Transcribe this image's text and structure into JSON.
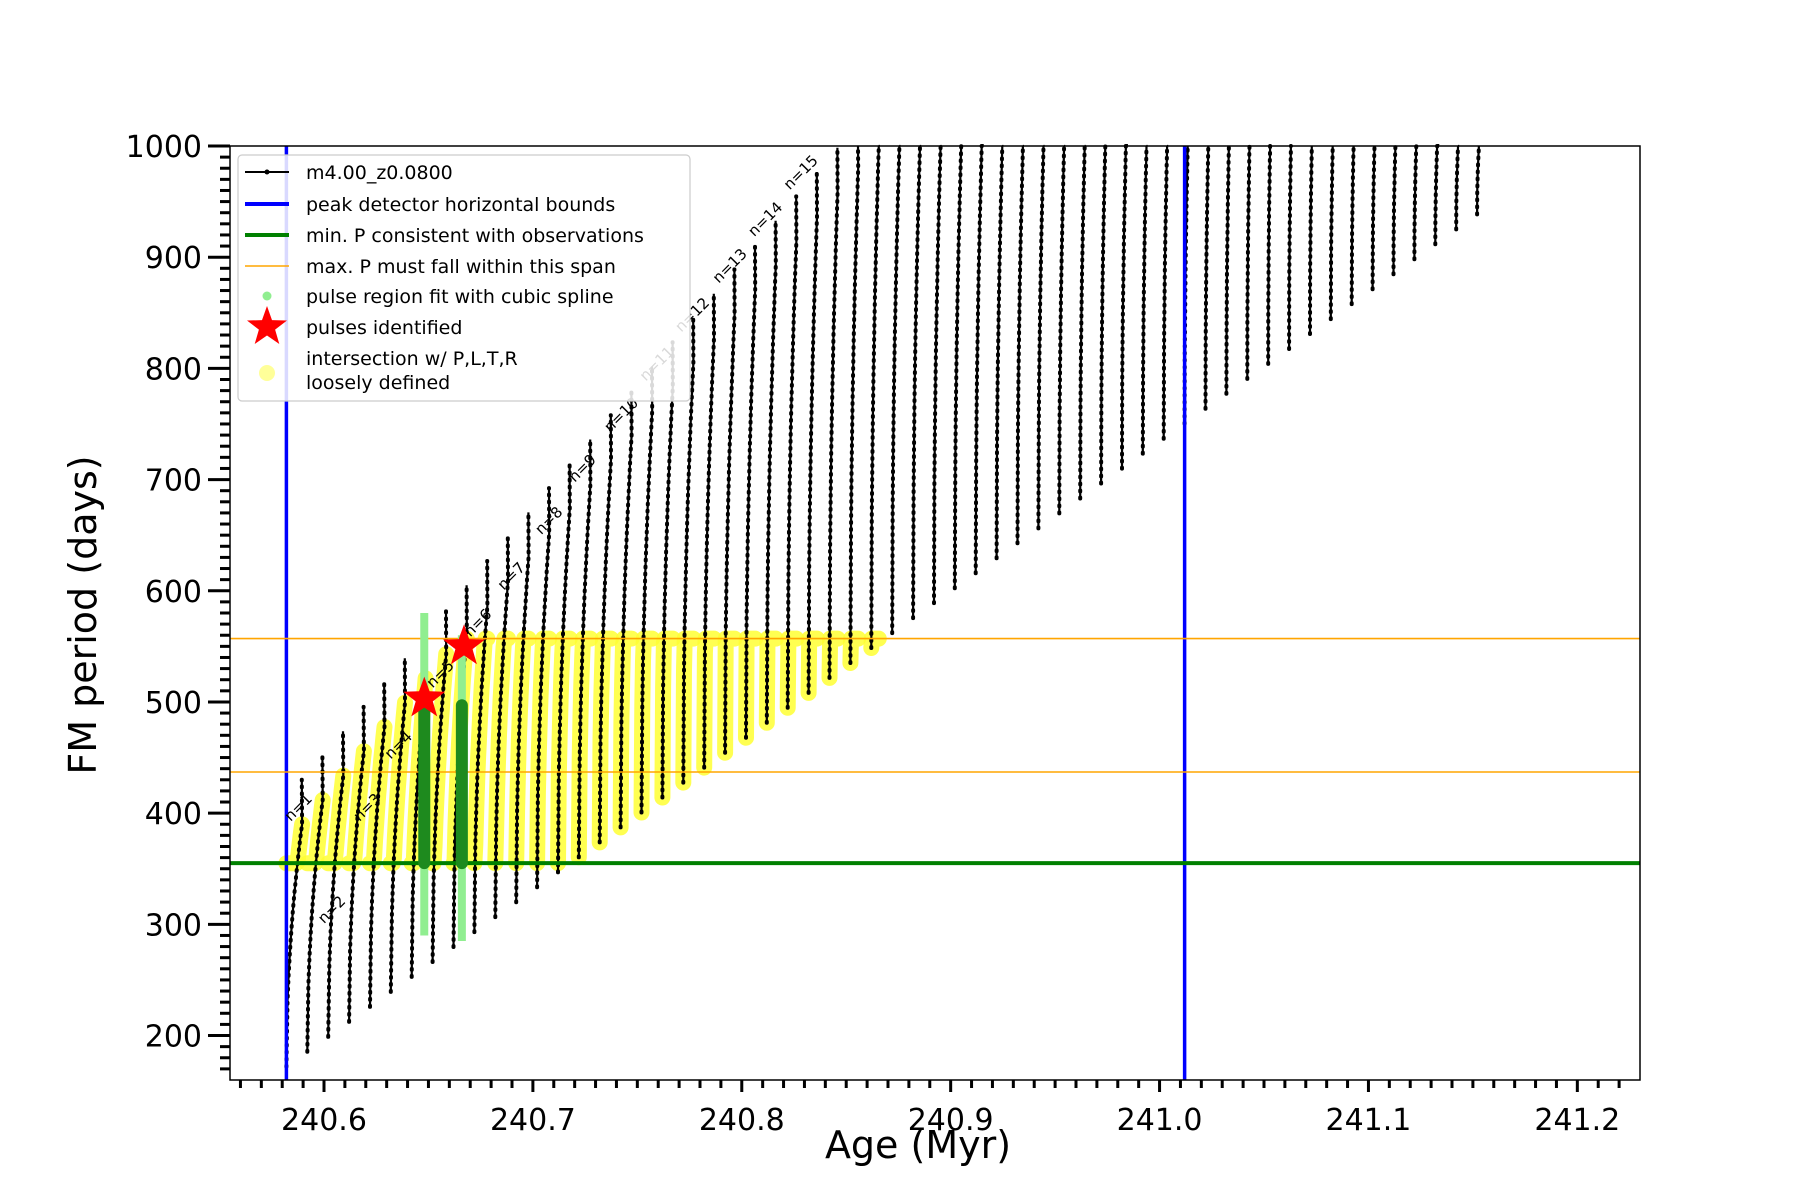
{
  "chart_data": {
    "type": "line",
    "xlabel": "Age (Myr)",
    "ylabel": "FM period (days)",
    "xlim": [
      240.555,
      241.23
    ],
    "ylim": [
      160,
      1000
    ],
    "xticks": [
      240.6,
      240.7,
      240.8,
      240.9,
      241.0,
      241.1,
      241.2
    ],
    "xtick_labels": [
      "240.6",
      "240.7",
      "240.8",
      "240.9",
      "241.0",
      "241.1",
      "241.2"
    ],
    "yticks": [
      200,
      300,
      400,
      500,
      600,
      700,
      800,
      900,
      1000
    ],
    "ytick_labels": [
      "200",
      "300",
      "400",
      "500",
      "600",
      "700",
      "800",
      "900",
      "1000"
    ],
    "grid": false,
    "legend_placement": "top-left",
    "legend": [
      {
        "label": "m4.00_z0.0800",
        "kind": "line-marker",
        "color": "#000000"
      },
      {
        "label": "peak detector horizontal bounds",
        "kind": "line",
        "color": "#0000ff"
      },
      {
        "label": "min. P consistent with observations",
        "kind": "line",
        "color": "#008000"
      },
      {
        "label": "max. P must fall within this span",
        "kind": "thin-line",
        "color": "#ffa500"
      },
      {
        "label": "pulse region fit with cubic spline",
        "kind": "dot",
        "color": "#90ee90"
      },
      {
        "label": "pulses identified",
        "kind": "star",
        "color": "#ff0000"
      },
      {
        "label": "intersection w/ P,L,T,R\nloosely defined",
        "kind": "big-dot",
        "color": "#ffff99"
      }
    ],
    "vertical_lines": [
      {
        "name": "peak detector horizontal bounds",
        "x": 240.582,
        "color": "#0000ff"
      },
      {
        "name": "peak detector horizontal bounds",
        "x": 241.012,
        "color": "#0000ff"
      }
    ],
    "horizontal_lines": [
      {
        "name": "min. P consistent with observations",
        "y": 355,
        "color": "#008000"
      },
      {
        "name": "max. P must fall within this span",
        "y": 437,
        "color": "#ffa500"
      },
      {
        "name": "max. P must fall within this span",
        "y": 557,
        "color": "#ffa500"
      }
    ],
    "pulses_identified": [
      {
        "x": 240.648,
        "y": 503
      },
      {
        "x": 240.667,
        "y": 550
      }
    ],
    "spline_regions": [
      {
        "x": 240.648,
        "y_min": 290,
        "y_max": 580
      },
      {
        "x": 240.666,
        "y_min": 285,
        "y_max": 560
      }
    ],
    "pulse_labels": [
      {
        "text": "n=1",
        "x": 240.584,
        "y": 392
      },
      {
        "text": "n=2",
        "x": 240.6,
        "y": 300
      },
      {
        "text": "n=3",
        "x": 240.617,
        "y": 392
      },
      {
        "text": "n=4",
        "x": 240.632,
        "y": 448
      },
      {
        "text": "n=5",
        "x": 240.652,
        "y": 512
      },
      {
        "text": "n=6",
        "x": 240.67,
        "y": 558
      },
      {
        "text": "n=7",
        "x": 240.686,
        "y": 600
      },
      {
        "text": "n=8",
        "x": 240.704,
        "y": 650
      },
      {
        "text": "n=9",
        "x": 240.72,
        "y": 697
      },
      {
        "text": "n=10",
        "x": 240.737,
        "y": 742
      },
      {
        "text": "n=11",
        "x": 240.754,
        "y": 788
      },
      {
        "text": "n=12",
        "x": 240.771,
        "y": 832
      },
      {
        "text": "n=13",
        "x": 240.789,
        "y": 876
      },
      {
        "text": "n=14",
        "x": 240.806,
        "y": 918
      },
      {
        "text": "n=15",
        "x": 240.823,
        "y": 960
      }
    ],
    "series_name": "m4.00_z0.0800",
    "pulse_count": 58,
    "first_pulse_age": 240.582,
    "last_pulse_age": 241.168,
    "pulse_spacing": 0.01,
    "period_trend": {
      "x_start": 240.582,
      "min_start": 172,
      "min_end": 960,
      "max_start": 390,
      "max_end": 1000
    }
  }
}
